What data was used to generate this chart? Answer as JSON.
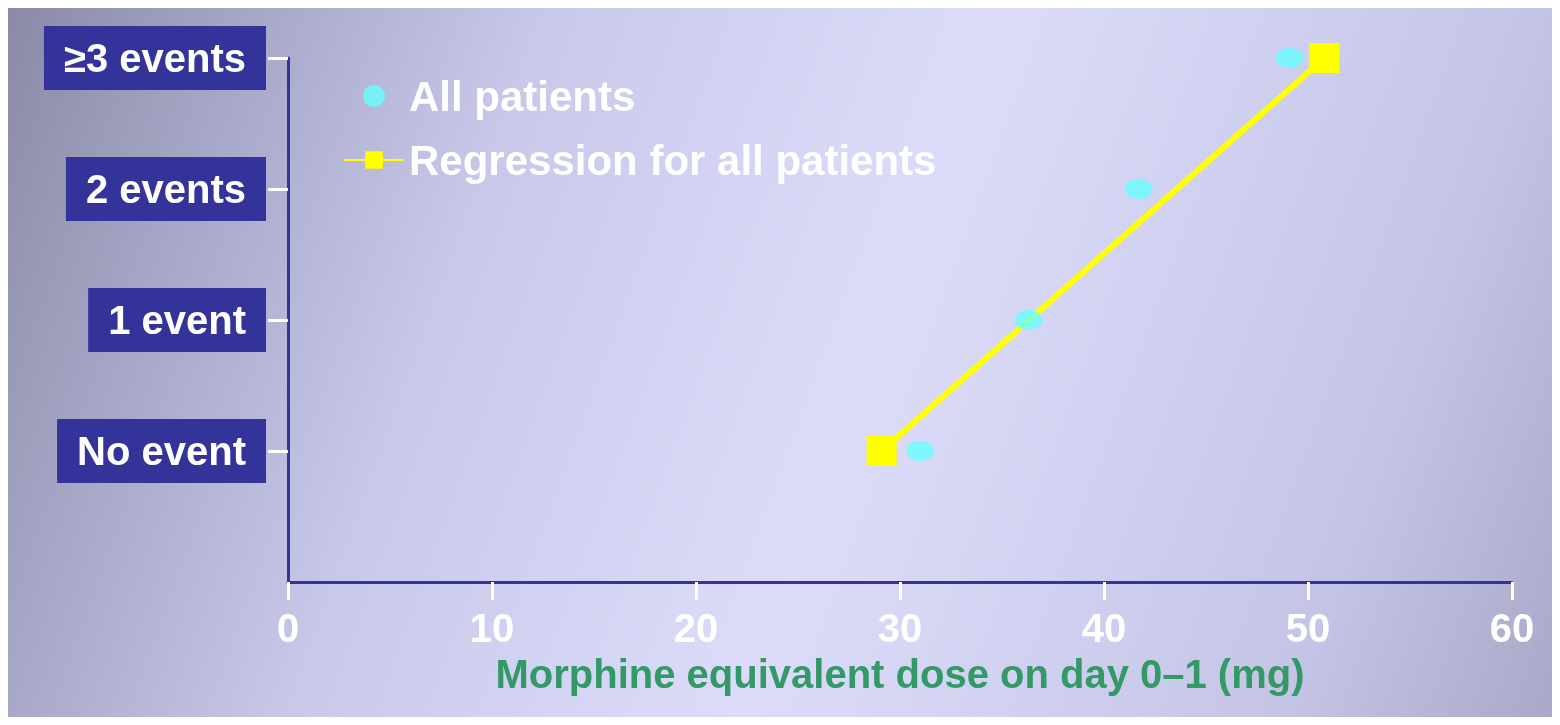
{
  "chart_data": {
    "type": "scatter",
    "xlabel": "Morphine equivalent dose on day 0–1 (mg)",
    "xlim": [
      0,
      60
    ],
    "xticks": [
      0,
      10,
      20,
      30,
      40,
      50,
      60
    ],
    "ylim": [
      -1,
      3
    ],
    "yticks": [
      {
        "value": 0,
        "label": "No event"
      },
      {
        "value": 1,
        "label": "1 event"
      },
      {
        "value": 2,
        "label": "2 events"
      },
      {
        "value": 3,
        "label": "≥3 events"
      }
    ],
    "series": [
      {
        "name": "All patients",
        "color": "#66ffff",
        "marker": "circle",
        "x": [
          31,
          36.3,
          41.7,
          49.1
        ],
        "values": [
          0,
          1,
          2,
          3
        ]
      },
      {
        "name": "Regression for all patients",
        "type": "line",
        "color": "#ffff00",
        "marker": "square",
        "line_style": "solid",
        "x": [
          29.1,
          50.8
        ],
        "values": [
          0,
          3
        ]
      }
    ],
    "grid": false,
    "legend": "top left"
  }
}
